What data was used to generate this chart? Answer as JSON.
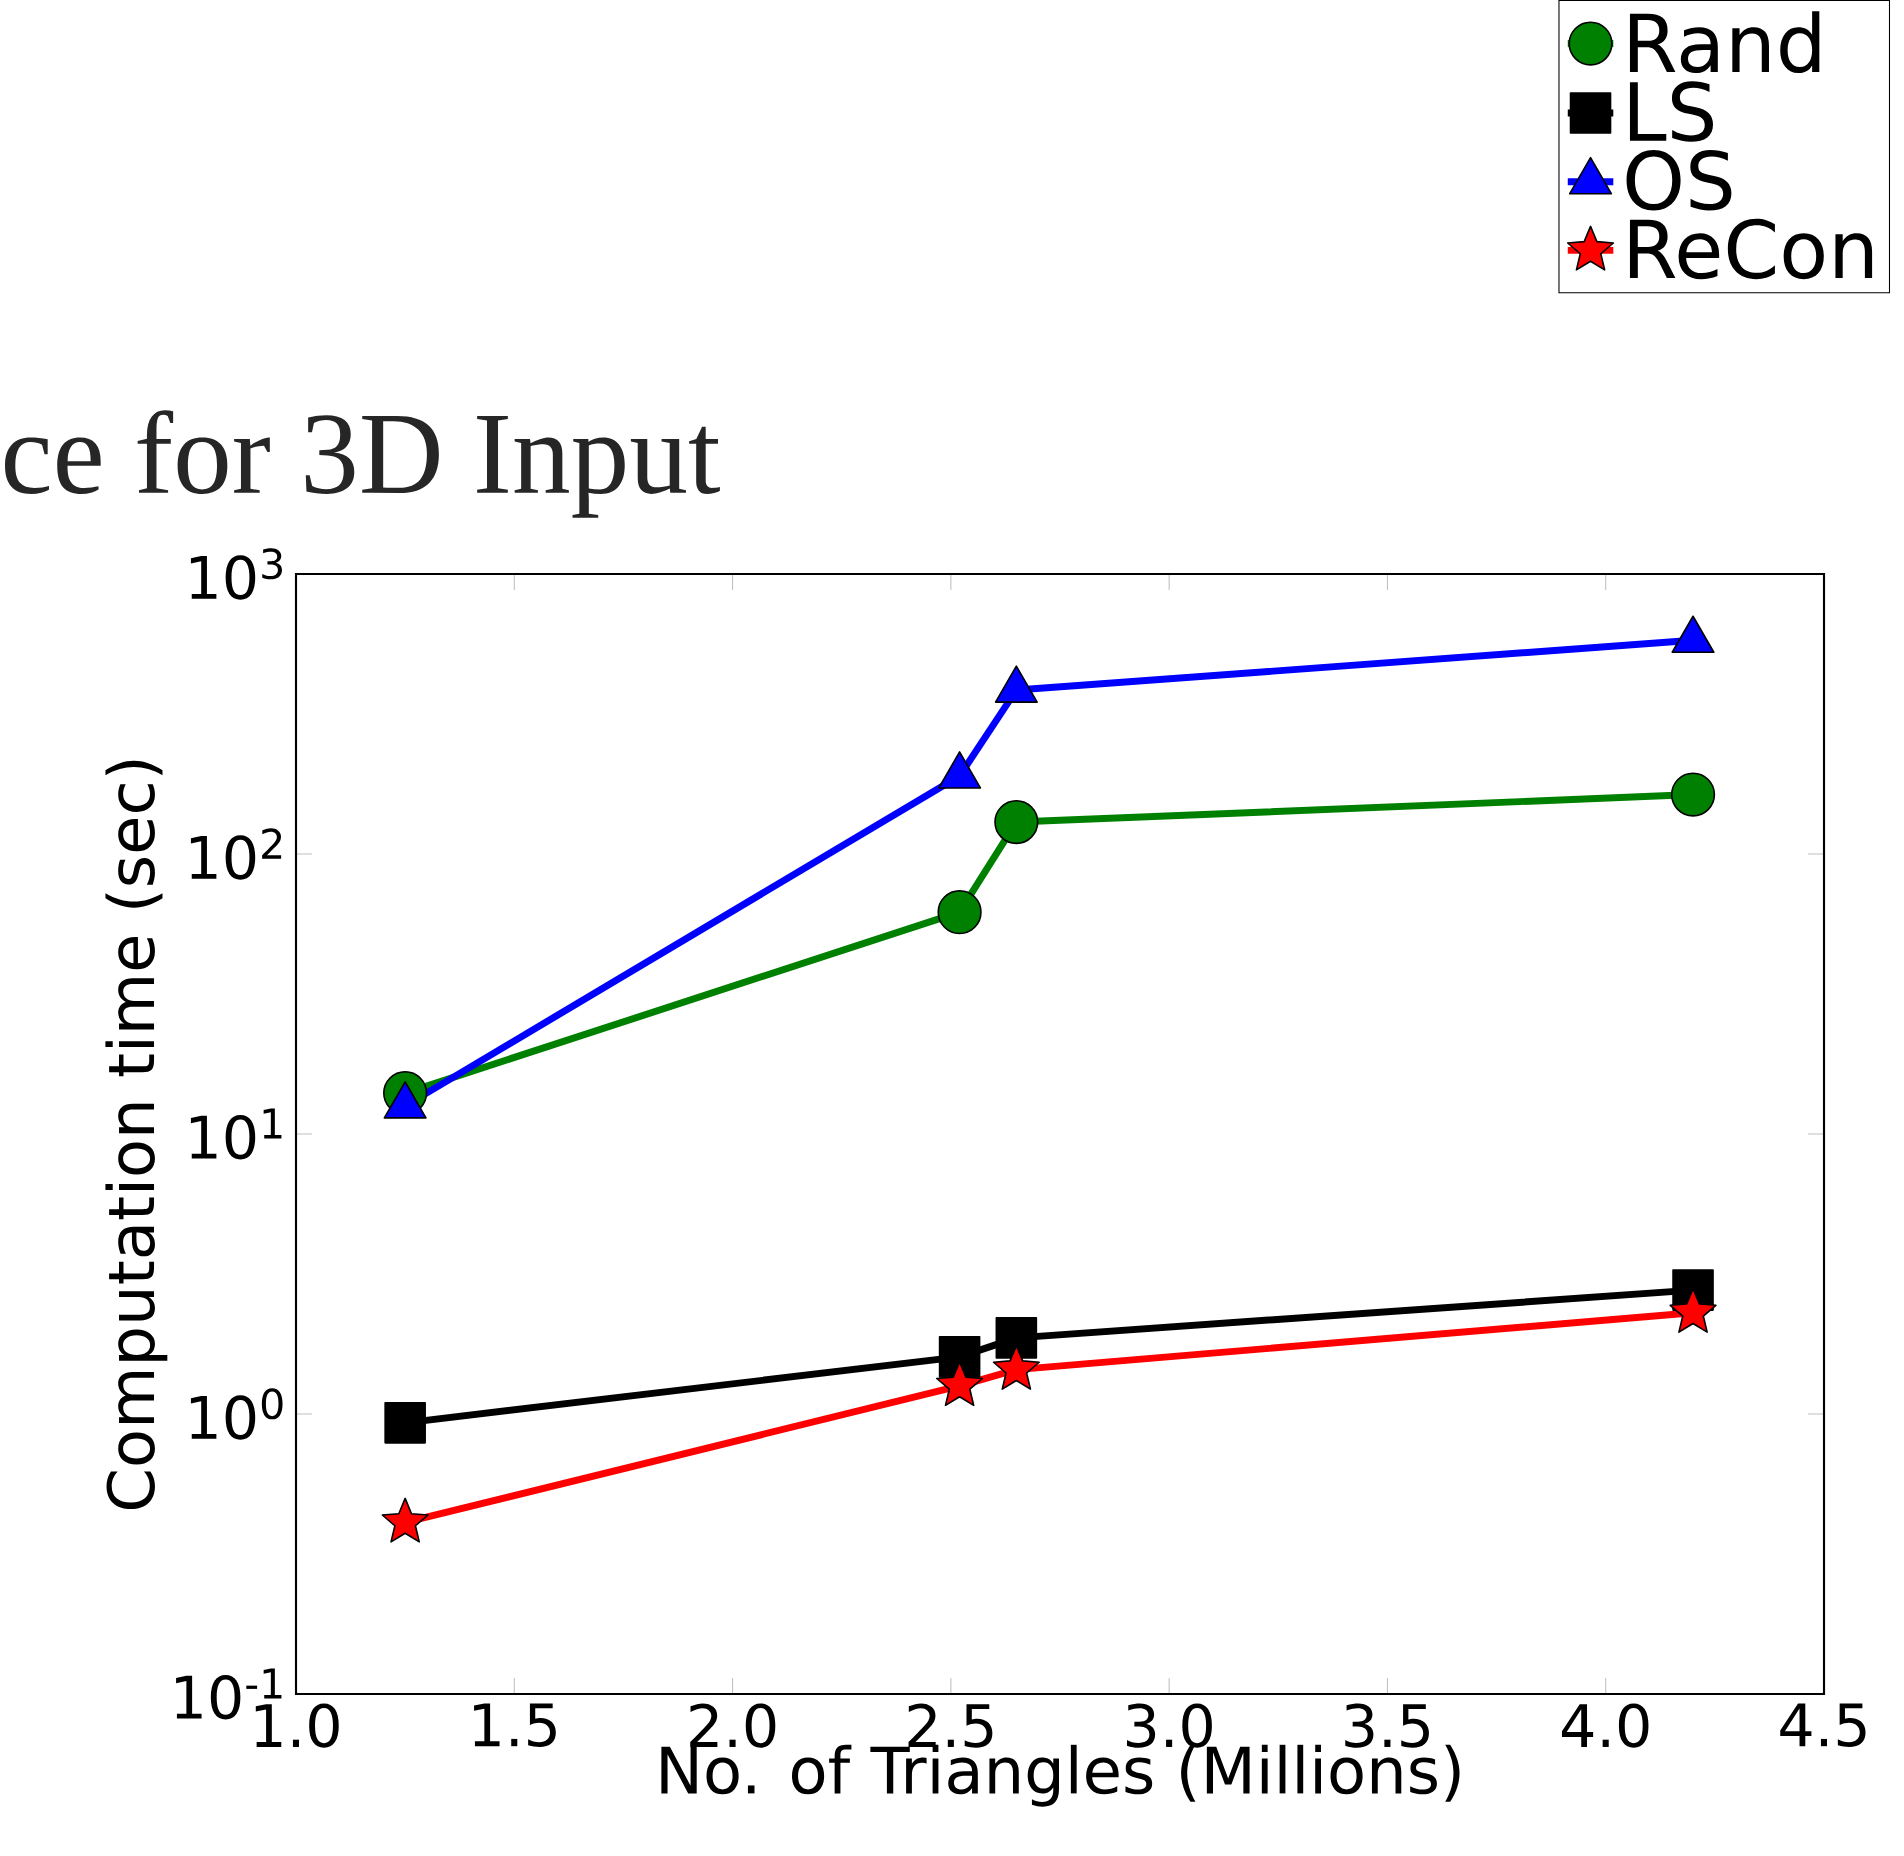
{
  "chart_data": {
    "type": "line",
    "xlabel": "No. of Triangles (Millions)",
    "ylabel": "Computation time (sec)",
    "annotations": [
      "ce for 3D Input"
    ],
    "log": "y",
    "xlim": [
      1.0,
      4.5
    ],
    "ylim": [
      0.1,
      1000
    ],
    "xticks": [
      {
        "value": 1.0,
        "label": "1.0"
      },
      {
        "value": 1.5,
        "label": "1.5"
      },
      {
        "value": 2.0,
        "label": "2.0"
      },
      {
        "value": 2.5,
        "label": "2.5"
      },
      {
        "value": 3.0,
        "label": "3.0"
      },
      {
        "value": 3.5,
        "label": "3.5"
      },
      {
        "value": 4.0,
        "label": "4.0"
      },
      {
        "value": 4.5,
        "label": "4.5"
      }
    ],
    "yticks": [
      {
        "value": 0.1,
        "label": "10$^{-1}$"
      },
      {
        "value": 1,
        "label": "10$^{0}$"
      },
      {
        "value": 10,
        "label": "10$^{1}$"
      },
      {
        "value": 100,
        "label": "10$^{2}$"
      },
      {
        "value": 1000,
        "label": "10$^{3}$"
      }
    ],
    "x": [
      1.25,
      2.52,
      2.65,
      4.2
    ],
    "legend": "top right",
    "grid": false,
    "series": [
      {
        "name": "Rand",
        "color": "#008000",
        "marker": "circle",
        "values": [
          14,
          62,
          130,
          163
        ]
      },
      {
        "name": "LS",
        "color": "#000000",
        "marker": "square",
        "values": [
          0.93,
          1.6,
          1.87,
          2.77
        ]
      },
      {
        "name": "OS",
        "color": "#0000ff",
        "marker": "triangle",
        "values": [
          12.6,
          190,
          385,
          580
        ]
      },
      {
        "name": "ReCon",
        "color": "#ff0000",
        "marker": "star",
        "values": [
          0.41,
          1.26,
          1.44,
          2.3
        ]
      }
    ]
  }
}
